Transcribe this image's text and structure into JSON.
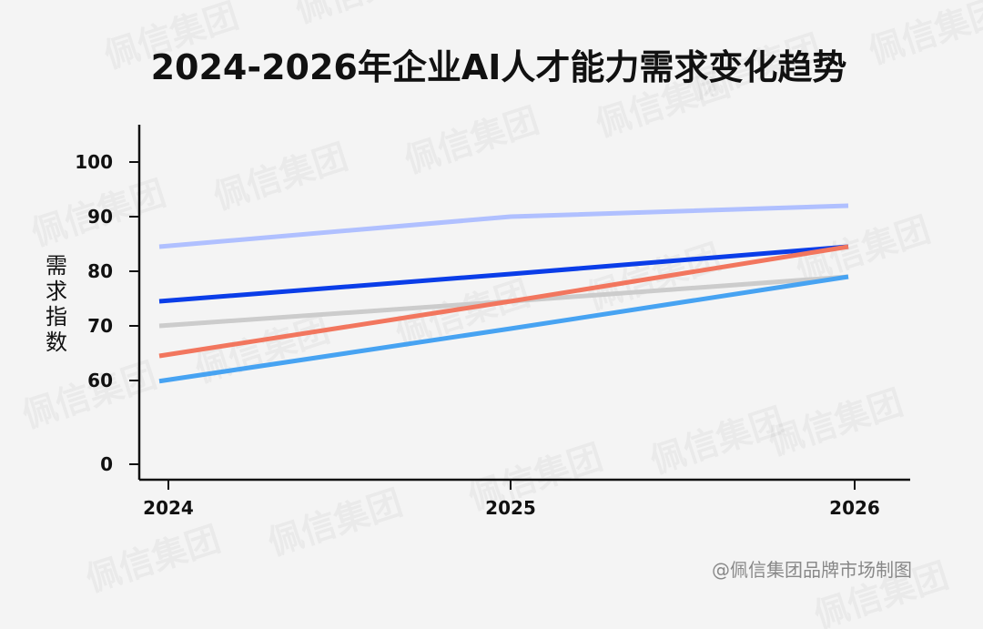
{
  "chart_data": {
    "type": "line",
    "title": "2024-2026年企业AI人才能力需求变化趋势",
    "ylabel": "需求指数",
    "xlabel": "",
    "x": [
      "2024",
      "2025",
      "2026"
    ],
    "y_ticks": [
      0,
      60,
      70,
      80,
      90,
      100
    ],
    "ylim": [
      0,
      105
    ],
    "grid": false,
    "series": [
      {
        "values": [
          84.5,
          90,
          92
        ],
        "color": "#b0c0ff"
      },
      {
        "values": [
          74.5,
          79.5,
          84.5
        ],
        "color": "#0a3de8"
      },
      {
        "values": [
          70,
          74.5,
          79
        ],
        "color": "#cccccc"
      },
      {
        "values": [
          64.5,
          74.5,
          84.5
        ],
        "color": "#f2765e"
      },
      {
        "values": [
          59.5,
          69.5,
          79
        ],
        "color": "#47a3f2"
      }
    ]
  },
  "watermark": "佩信集团",
  "credit": "@佩信集团品牌市场制图"
}
